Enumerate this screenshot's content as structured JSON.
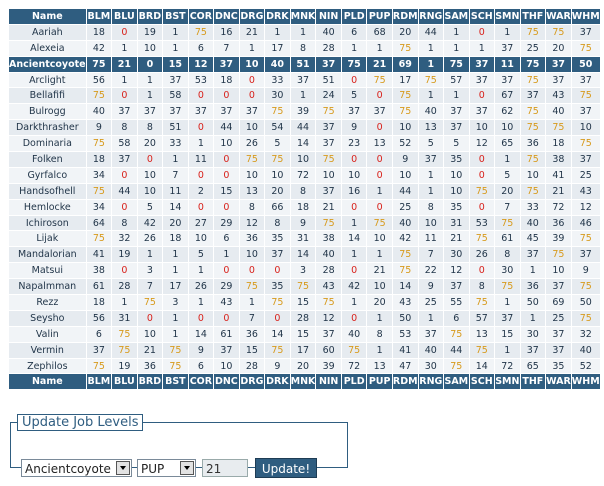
{
  "table": {
    "columns": [
      "Name",
      "BLM",
      "BLU",
      "BRD",
      "BST",
      "COR",
      "DNC",
      "DRG",
      "DRK",
      "MNK",
      "NIN",
      "PLD",
      "PUP",
      "RDM",
      "RNG",
      "SAM",
      "SCH",
      "SMN",
      "THF",
      "WAR",
      "WHM"
    ],
    "rows": [
      [
        "Aariah",
        18,
        0,
        19,
        1,
        75,
        16,
        21,
        1,
        1,
        40,
        6,
        68,
        20,
        44,
        1,
        0,
        1,
        75,
        75,
        37
      ],
      [
        "Alexeia",
        42,
        1,
        10,
        1,
        6,
        7,
        1,
        17,
        8,
        28,
        1,
        1,
        75,
        1,
        1,
        1,
        37,
        25,
        20,
        75
      ],
      [
        "Ancientcoyote",
        75,
        21,
        0,
        15,
        12,
        37,
        10,
        40,
        51,
        37,
        75,
        21,
        69,
        1,
        75,
        37,
        11,
        75,
        37,
        50
      ],
      [
        "Arclight",
        56,
        1,
        1,
        37,
        53,
        18,
        0,
        33,
        37,
        51,
        0,
        75,
        17,
        75,
        57,
        37,
        37,
        75,
        37,
        37
      ],
      [
        "Bellafifi",
        75,
        0,
        1,
        58,
        0,
        0,
        0,
        30,
        1,
        24,
        5,
        0,
        75,
        1,
        1,
        0,
        67,
        37,
        43,
        75
      ],
      [
        "Bulrogg",
        40,
        37,
        37,
        37,
        37,
        37,
        37,
        75,
        39,
        75,
        37,
        37,
        75,
        40,
        37,
        37,
        62,
        75,
        40,
        37
      ],
      [
        "Darkthrasher",
        9,
        8,
        8,
        51,
        0,
        44,
        10,
        54,
        44,
        37,
        9,
        0,
        10,
        13,
        37,
        10,
        10,
        75,
        75,
        10
      ],
      [
        "Dominaria",
        75,
        58,
        20,
        33,
        1,
        10,
        26,
        5,
        14,
        37,
        23,
        13,
        52,
        5,
        5,
        12,
        65,
        36,
        18,
        75
      ],
      [
        "Folken",
        18,
        37,
        0,
        1,
        11,
        0,
        75,
        75,
        10,
        75,
        0,
        0,
        9,
        37,
        35,
        0,
        1,
        75,
        38,
        37
      ],
      [
        "Gyrfalco",
        34,
        0,
        10,
        7,
        0,
        0,
        10,
        10,
        72,
        10,
        10,
        0,
        10,
        1,
        10,
        0,
        5,
        10,
        41,
        25
      ],
      [
        "Handsofhell",
        75,
        44,
        10,
        11,
        2,
        15,
        13,
        20,
        8,
        37,
        16,
        1,
        44,
        1,
        10,
        75,
        20,
        75,
        21,
        43
      ],
      [
        "Hemlocke",
        34,
        0,
        5,
        14,
        0,
        0,
        8,
        66,
        18,
        21,
        0,
        0,
        25,
        8,
        35,
        0,
        7,
        33,
        72,
        12
      ],
      [
        "Ichiroson",
        64,
        8,
        42,
        20,
        27,
        29,
        12,
        8,
        9,
        75,
        1,
        75,
        40,
        10,
        31,
        53,
        75,
        40,
        36,
        46
      ],
      [
        "Lijak",
        75,
        32,
        26,
        18,
        10,
        6,
        36,
        35,
        31,
        38,
        14,
        10,
        42,
        11,
        21,
        75,
        61,
        45,
        39,
        75
      ],
      [
        "Mandalorian",
        41,
        19,
        1,
        1,
        5,
        1,
        10,
        37,
        14,
        40,
        1,
        1,
        75,
        7,
        30,
        26,
        8,
        37,
        75,
        37
      ],
      [
        "Matsui",
        38,
        0,
        3,
        1,
        1,
        0,
        0,
        0,
        3,
        28,
        0,
        21,
        75,
        22,
        12,
        0,
        30,
        1,
        10,
        9
      ],
      [
        "Napalmman",
        61,
        28,
        7,
        17,
        26,
        29,
        75,
        35,
        75,
        43,
        42,
        10,
        14,
        9,
        37,
        8,
        75,
        36,
        37,
        75
      ],
      [
        "Rezz",
        18,
        1,
        75,
        3,
        1,
        43,
        1,
        75,
        15,
        75,
        1,
        20,
        43,
        25,
        55,
        75,
        1,
        50,
        69,
        50
      ],
      [
        "Seysho",
        56,
        31,
        0,
        1,
        0,
        0,
        7,
        0,
        28,
        12,
        0,
        1,
        50,
        1,
        6,
        57,
        37,
        1,
        25,
        75
      ],
      [
        "Valin",
        6,
        75,
        10,
        1,
        14,
        61,
        36,
        14,
        15,
        37,
        40,
        8,
        53,
        37,
        75,
        13,
        15,
        30,
        37,
        32
      ],
      [
        "Vermin",
        37,
        75,
        21,
        75,
        9,
        37,
        15,
        75,
        17,
        60,
        75,
        1,
        41,
        40,
        44,
        75,
        1,
        37,
        37,
        40
      ],
      [
        "Zephilos",
        75,
        19,
        36,
        75,
        6,
        10,
        28,
        9,
        20,
        39,
        72,
        13,
        47,
        30,
        75,
        14,
        72,
        65,
        35,
        52
      ]
    ]
  },
  "form": {
    "legend": "Update Job Levels",
    "name_select": "Ancientcoyote",
    "job_select": "PUP",
    "level_input": "21",
    "button": "Update!"
  }
}
